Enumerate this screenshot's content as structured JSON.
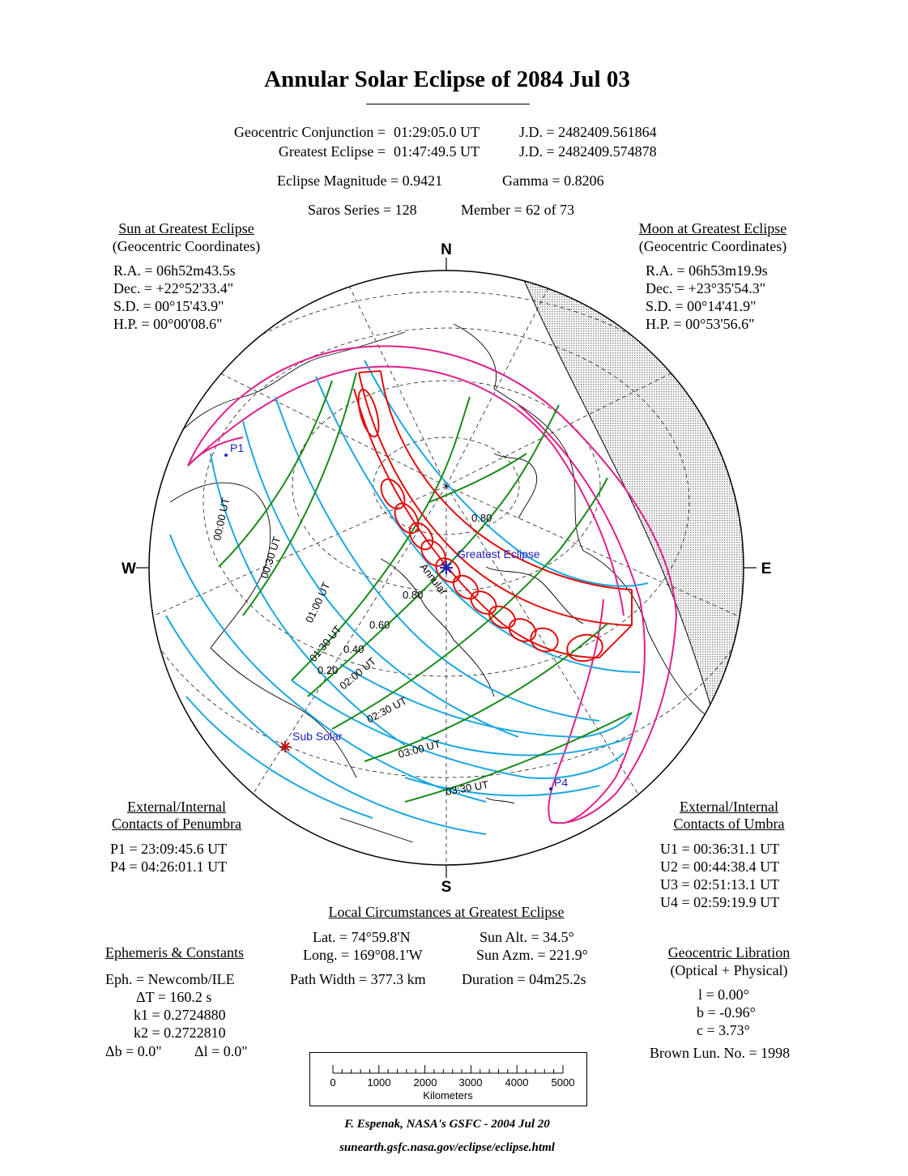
{
  "title": "Annular Solar Eclipse of  2084 Jul 03",
  "summary": {
    "conj_label": "Geocentric Conjunction =",
    "conj_time": "01:29:05.0 UT",
    "conj_jd": "J.D. =  2482409.561864",
    "ge_label": "Greatest Eclipse =",
    "ge_time": "01:47:49.5 UT",
    "ge_jd": "J.D. =  2482409.574878",
    "magnitude": "Eclipse Magnitude =  0.9421",
    "gamma": "Gamma =  0.8206",
    "saros": "Saros Series = 128",
    "member": "Member = 62 of 73"
  },
  "sun": {
    "heading": "Sun at Greatest Eclipse",
    "subheading": "(Geocentric Coordinates)",
    "ra": "R.A. = 06h52m43.5s",
    "dec": "Dec. = +22°52'33.4\"",
    "sd": "S.D. =  00°15'43.9\"",
    "hp": "H.P. =  00°00'08.6\""
  },
  "moon": {
    "heading": "Moon at Greatest Eclipse",
    "subheading": "(Geocentric Coordinates)",
    "ra": "R.A. = 06h53m19.9s",
    "dec": "Dec. = +23°35'54.3\"",
    "sd": "S.D. =  00°14'41.9\"",
    "hp": "H.P. =  00°53'56.6\""
  },
  "penumbra": {
    "heading1": "External/Internal",
    "heading2": "Contacts of Penumbra",
    "p1": "P1 = 23:09:45.6 UT",
    "p4": "P4 = 04:26:01.1 UT"
  },
  "umbra": {
    "heading1": "External/Internal",
    "heading2": "Contacts of Umbra",
    "u1": "U1 = 00:36:31.1 UT",
    "u2": "U2 = 00:44:38.4 UT",
    "u3": "U3 = 02:51:13.1 UT",
    "u4": "U4 = 02:59:19.9 UT"
  },
  "local": {
    "heading": "Local Circumstances at Greatest Eclipse",
    "lat": "Lat. =  74°59.8'N",
    "long": "Long. = 169°08.1'W",
    "sun_alt": "Sun Alt. =   34.5°",
    "sun_azm": "Sun Azm. = 221.9°",
    "path_width": "Path Width = 377.3 km",
    "duration": "Duration =  04m25.2s"
  },
  "ephemeris": {
    "heading": "Ephemeris & Constants",
    "eph": "Eph. = Newcomb/ILE",
    "dt": "ΔT =    160.2 s",
    "k1": "k1 = 0.2724880",
    "k2": "k2 = 0.2722810",
    "db": "Δb =   0.0\"",
    "dl": "Δl =   0.0\""
  },
  "libration": {
    "heading": "Geocentric Libration",
    "subheading": "(Optical + Physical)",
    "l": "l =    0.00°",
    "b": "b =   -0.96°",
    "c": "c =    3.73°",
    "brown": "Brown Lun. No. = 1998"
  },
  "map": {
    "compass_n": "N",
    "compass_s": "S",
    "compass_e": "E",
    "compass_w": "W",
    "greatest_eclipse_label": "Greatest Eclipse",
    "annular_label": "Annular",
    "sub_solar_label": "Sub Solar",
    "p1_label": "P1",
    "p4_label": "P4",
    "time_labels": [
      "00:00 UT",
      "00:30 UT",
      "01:00 UT",
      "01:30 UT",
      "02:00 UT",
      "02:30 UT",
      "03:00 UT",
      "03:30 UT"
    ],
    "magnitude_labels": [
      "0.80",
      "0.80",
      "0.60",
      "0.40",
      "0.20"
    ],
    "colors": {
      "time_lines": "#1ca8e0",
      "magnitude_lines": "#1a8a1a",
      "penumbra_limits": "#e0208a",
      "umbral_path": "#e01010",
      "night_shading": "#bdbdbd",
      "markers": "#2020c0"
    }
  },
  "scale": {
    "ticks": [
      "0",
      "1000",
      "2000",
      "3000",
      "4000",
      "5000"
    ],
    "unit": "Kilometers"
  },
  "credit": {
    "author": "F. Espenak, NASA's GSFC -  2004 Jul 20",
    "url": "sunearth.gsfc.nasa.gov/eclipse/eclipse.html"
  }
}
